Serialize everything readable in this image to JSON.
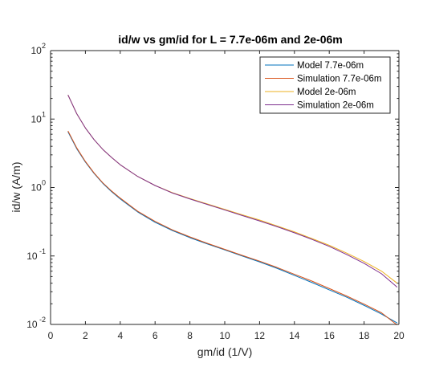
{
  "chart_data": {
    "type": "line",
    "title": "id/w vs gm/id for L = 7.7e-06m and 2e-06m",
    "xlabel": "gm/id (1/V)",
    "ylabel": "id/w (A/m)",
    "xlim": [
      0,
      20
    ],
    "ylim": [
      0.01,
      100
    ],
    "yscale": "log",
    "xticks": [
      0,
      2,
      4,
      6,
      8,
      10,
      12,
      14,
      16,
      18,
      20
    ],
    "xtick_labels": [
      "0",
      "2",
      "4",
      "6",
      "8",
      "10",
      "12",
      "14",
      "16",
      "18",
      "20"
    ],
    "yticks": [
      0.01,
      0.1,
      1,
      10,
      100
    ],
    "ytick_labels": [
      {
        "base": "10",
        "exp": "-2"
      },
      {
        "base": "10",
        "exp": "-1"
      },
      {
        "base": "10",
        "exp": "0"
      },
      {
        "base": "10",
        "exp": "1"
      },
      {
        "base": "10",
        "exp": "2"
      }
    ],
    "grid": false,
    "legend_position": "top-right",
    "series": [
      {
        "name": "Model 7.7e-06m",
        "color": "#0072BD",
        "x": [
          1.0,
          1.5,
          2.0,
          2.5,
          3.0,
          3.5,
          4.0,
          5.0,
          6.0,
          7.0,
          8.0,
          9.0,
          10.0,
          11.0,
          12.0,
          13.0,
          14.0,
          15.0,
          16.0,
          17.0,
          18.0,
          19.0,
          19.9
        ],
        "y": [
          6.5,
          3.7,
          2.35,
          1.6,
          1.15,
          0.87,
          0.68,
          0.44,
          0.31,
          0.235,
          0.185,
          0.15,
          0.123,
          0.1,
          0.082,
          0.066,
          0.052,
          0.041,
          0.032,
          0.025,
          0.019,
          0.0142,
          0.0105
        ]
      },
      {
        "name": "Simulation 7.7e-06m",
        "color": "#D95319",
        "x": [
          1.0,
          1.5,
          2.0,
          2.5,
          3.0,
          3.5,
          4.0,
          5.0,
          6.0,
          7.0,
          8.0,
          9.0,
          10.0,
          11.0,
          12.0,
          13.0,
          14.0,
          15.0,
          16.0,
          17.0,
          18.0,
          19.0,
          19.9
        ],
        "y": [
          6.7,
          3.8,
          2.4,
          1.63,
          1.17,
          0.89,
          0.7,
          0.45,
          0.32,
          0.24,
          0.19,
          0.153,
          0.125,
          0.102,
          0.084,
          0.068,
          0.054,
          0.043,
          0.0335,
          0.026,
          0.0198,
          0.0148,
          0.0098
        ]
      },
      {
        "name": "Model 2e-06m",
        "color": "#EDB120",
        "x": [
          1.0,
          1.5,
          2.0,
          2.5,
          3.0,
          3.5,
          4.0,
          5.0,
          6.0,
          7.0,
          8.0,
          9.0,
          10.0,
          11.0,
          12.0,
          13.0,
          14.0,
          15.0,
          16.0,
          17.0,
          18.0,
          19.0,
          19.9
        ],
        "y": [
          22.5,
          12.0,
          7.4,
          5.0,
          3.6,
          2.75,
          2.15,
          1.45,
          1.07,
          0.84,
          0.69,
          0.575,
          0.48,
          0.4,
          0.335,
          0.275,
          0.225,
          0.18,
          0.143,
          0.11,
          0.083,
          0.06,
          0.04
        ]
      },
      {
        "name": "Simulation 2e-06m",
        "color": "#7E2F8E",
        "x": [
          1.0,
          1.5,
          2.0,
          2.5,
          3.0,
          3.5,
          4.0,
          5.0,
          6.0,
          7.0,
          8.0,
          9.0,
          10.0,
          11.0,
          12.0,
          13.0,
          14.0,
          15.0,
          16.0,
          17.0,
          18.0,
          19.0,
          19.9
        ],
        "y": [
          22.5,
          12.0,
          7.4,
          5.0,
          3.6,
          2.75,
          2.15,
          1.45,
          1.07,
          0.83,
          0.68,
          0.565,
          0.47,
          0.39,
          0.325,
          0.268,
          0.218,
          0.175,
          0.138,
          0.105,
          0.078,
          0.055,
          0.035
        ]
      }
    ]
  }
}
